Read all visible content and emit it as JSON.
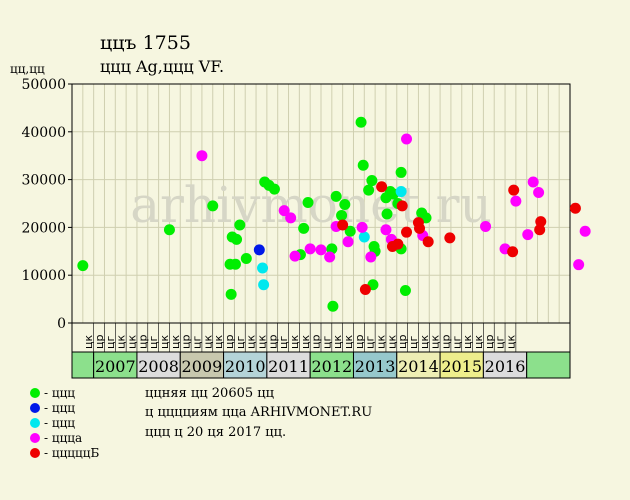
{
  "header": {
    "title": "ццъ 1755",
    "subtitle": "ццц Ag,ццц VF.",
    "y_unit": "цц,цц"
  },
  "legend": [
    {
      "label": "- ццц",
      "color": "#00ee00"
    },
    {
      "label": "- ццц",
      "color": "#0018e8"
    },
    {
      "label": "- ццц",
      "color": "#00e8ee"
    },
    {
      "label": "- цццa",
      "color": "#ff00ff"
    },
    {
      "label": "- цццццБ",
      "color": "#ee0000"
    }
  ],
  "info": [
    "ццняя цц 20605 цц",
    "ц цццциям цца ARHIVMONET.RU",
    "ццц ц 20 ця 2017 цц."
  ],
  "watermark": "arhivmonet.ru",
  "chart_data": {
    "type": "scatter",
    "ylim": [
      0,
      50000
    ],
    "y_ticks": [
      0,
      10000,
      20000,
      30000,
      40000,
      50000
    ],
    "y_tick_labels": [
      "0",
      "10000",
      "20000",
      "30000",
      "40000",
      "50000"
    ],
    "grid": true,
    "quarter_labels": [
      "цк",
      "цр",
      "цг",
      "цк",
      "цк",
      "цр",
      "цг",
      "цк",
      "цк",
      "цр",
      "цг",
      "цк",
      "цк",
      "цр",
      "цг",
      "цк",
      "цк",
      "цр",
      "цг",
      "цк",
      "цк",
      "цр",
      "цг",
      "цк",
      "цк",
      "цр",
      "цг",
      "цк",
      "цк",
      "цр",
      "цг",
      "цк",
      "цк",
      "цр",
      "цг",
      "цк",
      "цк",
      "цр",
      "цг",
      "цк"
    ],
    "years": [
      {
        "label": "2007",
        "color": "#8ce08c"
      },
      {
        "label": "2008",
        "color": "#dcdcdc"
      },
      {
        "label": "2009",
        "color": "#c8c8ae"
      },
      {
        "label": "2010",
        "color": "#b4d4d8"
      },
      {
        "label": "2011",
        "color": "#dcdcdc"
      },
      {
        "label": "2012",
        "color": "#8ce08c"
      },
      {
        "label": "2013",
        "color": "#96c8cc"
      },
      {
        "label": "2014",
        "color": "#eeeeb4"
      },
      {
        "label": "2015",
        "color": "#eeee8c"
      },
      {
        "label": "2016",
        "color": "#dcdcdc"
      }
    ],
    "series": [
      {
        "name": "- ццц",
        "color": "#00ee00",
        "points": [
          [
            -0.5,
            12000
          ],
          [
            7.5,
            19500
          ],
          [
            11.5,
            24500
          ],
          [
            13.3,
            18000
          ],
          [
            13.1,
            12300
          ],
          [
            13.6,
            12300
          ],
          [
            13.2,
            6000
          ],
          [
            13.7,
            17500
          ],
          [
            14.0,
            20500
          ],
          [
            14.6,
            13500
          ],
          [
            16.3,
            29500
          ],
          [
            16.7,
            28800
          ],
          [
            17.2,
            28000
          ],
          [
            19.6,
            14300
          ],
          [
            19.9,
            19800
          ],
          [
            20.3,
            25200
          ],
          [
            22.5,
            15500
          ],
          [
            22.6,
            3500
          ],
          [
            22.9,
            26500
          ],
          [
            23.4,
            22500
          ],
          [
            23.7,
            24800
          ],
          [
            24.2,
            19200
          ],
          [
            25.2,
            42000
          ],
          [
            25.4,
            33000
          ],
          [
            25.9,
            27800
          ],
          [
            26.2,
            29800
          ],
          [
            26.3,
            8000
          ],
          [
            26.4,
            16000
          ],
          [
            26.5,
            15000
          ],
          [
            27.5,
            26200
          ],
          [
            27.6,
            22800
          ],
          [
            27.9,
            27500
          ],
          [
            28.2,
            27000
          ],
          [
            28.6,
            25000
          ],
          [
            28.9,
            31500
          ],
          [
            28.9,
            15500
          ],
          [
            29.3,
            6800
          ],
          [
            30.8,
            23000
          ],
          [
            31.2,
            22000
          ]
        ]
      },
      {
        "name": "- ццц",
        "color": "#0018e8",
        "points": [
          [
            15.8,
            15300
          ]
        ]
      },
      {
        "name": "- ццц",
        "color": "#00e8ee",
        "points": [
          [
            16.1,
            11500
          ],
          [
            16.2,
            8000
          ],
          [
            25.5,
            18000
          ],
          [
            28.9,
            27500
          ]
        ]
      },
      {
        "name": "- цццa",
        "color": "#ff00ff",
        "points": [
          [
            10.5,
            35000
          ],
          [
            18.1,
            23500
          ],
          [
            18.7,
            22000
          ],
          [
            19.1,
            14000
          ],
          [
            20.5,
            15500
          ],
          [
            21.5,
            15300
          ],
          [
            22.3,
            13800
          ],
          [
            22.9,
            20200
          ],
          [
            24.0,
            17000
          ],
          [
            25.3,
            20000
          ],
          [
            26.1,
            13800
          ],
          [
            27.5,
            19500
          ],
          [
            28.0,
            17500
          ],
          [
            29.4,
            38500
          ],
          [
            30.9,
            18300
          ],
          [
            36.7,
            20200
          ],
          [
            38.5,
            15500
          ],
          [
            39.5,
            25500
          ],
          [
            40.6,
            18500
          ],
          [
            41.1,
            29500
          ],
          [
            41.6,
            27300
          ],
          [
            45.3,
            12200
          ],
          [
            45.9,
            19200
          ]
        ]
      },
      {
        "name": "- цццццБ",
        "color": "#ee0000",
        "points": [
          [
            23.5,
            20500
          ],
          [
            25.6,
            7000
          ],
          [
            27.1,
            28500
          ],
          [
            28.1,
            16000
          ],
          [
            28.6,
            16500
          ],
          [
            29.0,
            24500
          ],
          [
            29.4,
            19000
          ],
          [
            30.5,
            21000
          ],
          [
            30.6,
            19800
          ],
          [
            31.4,
            17000
          ],
          [
            33.4,
            17800
          ],
          [
            39.2,
            14900
          ],
          [
            39.3,
            27800
          ],
          [
            41.7,
            19500
          ],
          [
            41.8,
            21200
          ],
          [
            45.0,
            24000
          ]
        ]
      }
    ]
  }
}
